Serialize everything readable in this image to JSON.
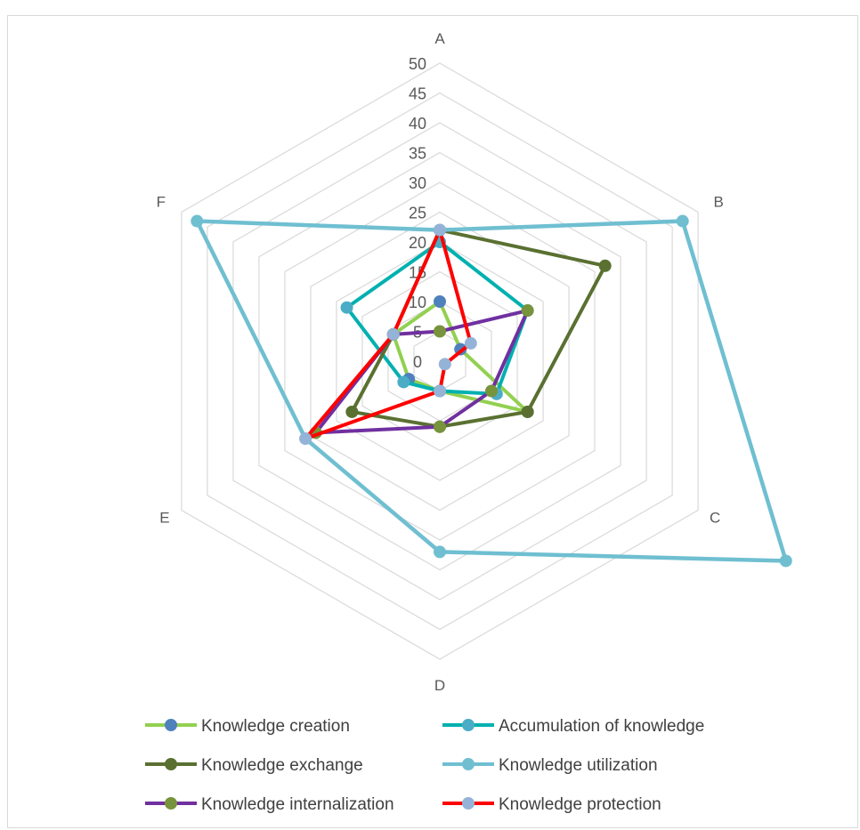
{
  "chart_data": {
    "type": "radar",
    "categories": [
      "A",
      "B",
      "C",
      "D",
      "E",
      "F"
    ],
    "r_ticks": [
      0,
      5,
      10,
      15,
      20,
      25,
      30,
      35,
      40,
      45,
      50
    ],
    "rlim": [
      0,
      50
    ],
    "grid": true,
    "legend_position": "bottom",
    "series": [
      {
        "name": "Knowledge creation",
        "color": "#92d050",
        "marker_color": "#4f81bd",
        "values": [
          10,
          4,
          17,
          5,
          6,
          9
        ]
      },
      {
        "name": "Accumulation of knowledge",
        "color": "#00b0b0",
        "marker_color": "#4bacc6",
        "values": [
          20,
          17,
          11,
          5,
          7,
          18
        ]
      },
      {
        "name": "Knowledge exchange",
        "color": "#5a7031",
        "marker_color": "#5a7031",
        "values": [
          22,
          32,
          17,
          11,
          17,
          9
        ]
      },
      {
        "name": "Knowledge utilization",
        "color": "#6fbfd1",
        "marker_color": "#6fbfd1",
        "values": [
          22,
          47,
          67,
          32,
          26,
          47
        ]
      },
      {
        "name": "Knowledge internalization",
        "color": "#7030a0",
        "marker_color": "#77933c",
        "values": [
          5,
          17,
          10,
          11,
          24,
          9
        ]
      },
      {
        "name": "Knowledge protection",
        "color": "#ff0000",
        "marker_color": "#95b3d7",
        "values": [
          22,
          6,
          1,
          5,
          26,
          9
        ]
      }
    ]
  }
}
